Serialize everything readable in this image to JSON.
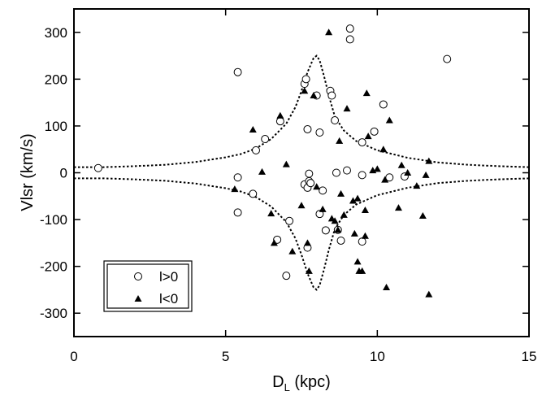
{
  "chart_data": {
    "type": "scatter",
    "xlabel_main": "D",
    "xlabel_sub": "L",
    "xlabel_unit": " (kpc)",
    "ylabel": "Vlsr  (km/s)",
    "xlim": [
      0,
      15
    ],
    "ylim": [
      -350,
      350
    ],
    "xticks": [
      0,
      5,
      10,
      15
    ],
    "xtick_labels": [
      "0",
      "5",
      "10",
      "15"
    ],
    "yticks": [
      -300,
      -200,
      -100,
      0,
      100,
      200,
      300
    ],
    "ytick_labels": [
      "-300",
      "-200",
      "-100",
      "0",
      "100",
      "200",
      "300"
    ],
    "grid": false,
    "legend_position": "bottom-left",
    "series": [
      {
        "name": "l>0",
        "marker": "open-circle",
        "points": [
          [
            0.8,
            10
          ],
          [
            5.4,
            215
          ],
          [
            5.4,
            -10
          ],
          [
            5.4,
            -85
          ],
          [
            5.9,
            -45
          ],
          [
            6.0,
            48
          ],
          [
            6.3,
            72
          ],
          [
            6.7,
            -143
          ],
          [
            6.8,
            110
          ],
          [
            7.0,
            -220
          ],
          [
            7.1,
            -103
          ],
          [
            7.6,
            190
          ],
          [
            7.6,
            -25
          ],
          [
            7.65,
            200
          ],
          [
            7.7,
            93
          ],
          [
            7.7,
            -32
          ],
          [
            7.7,
            -160
          ],
          [
            7.75,
            -2
          ],
          [
            7.75,
            -18
          ],
          [
            7.8,
            -22
          ],
          [
            8.0,
            165
          ],
          [
            8.1,
            86
          ],
          [
            8.1,
            -88
          ],
          [
            8.2,
            -38
          ],
          [
            8.3,
            -123
          ],
          [
            8.45,
            175
          ],
          [
            8.5,
            165
          ],
          [
            8.6,
            112
          ],
          [
            8.65,
            0
          ],
          [
            8.7,
            -122
          ],
          [
            8.8,
            -145
          ],
          [
            9.0,
            5
          ],
          [
            9.1,
            308
          ],
          [
            9.1,
            285
          ],
          [
            9.5,
            -5
          ],
          [
            9.5,
            65
          ],
          [
            9.5,
            -147
          ],
          [
            9.9,
            88
          ],
          [
            10.2,
            146
          ],
          [
            10.4,
            -10
          ],
          [
            10.9,
            -8
          ],
          [
            12.3,
            243
          ]
        ]
      },
      {
        "name": "l<0",
        "marker": "filled-triangle",
        "points": [
          [
            5.3,
            -35
          ],
          [
            5.9,
            92
          ],
          [
            6.2,
            2
          ],
          [
            6.5,
            -87
          ],
          [
            6.6,
            -150
          ],
          [
            6.8,
            122
          ],
          [
            7.0,
            18
          ],
          [
            7.2,
            -168
          ],
          [
            7.5,
            -70
          ],
          [
            7.6,
            175
          ],
          [
            7.7,
            -150
          ],
          [
            7.75,
            -210
          ],
          [
            7.9,
            165
          ],
          [
            8.0,
            -30
          ],
          [
            8.2,
            -78
          ],
          [
            8.4,
            300
          ],
          [
            8.5,
            -98
          ],
          [
            8.6,
            -103
          ],
          [
            8.7,
            -122
          ],
          [
            8.75,
            68
          ],
          [
            8.8,
            -45
          ],
          [
            8.9,
            -90
          ],
          [
            9.0,
            137
          ],
          [
            9.2,
            -60
          ],
          [
            9.25,
            -130
          ],
          [
            9.35,
            -55
          ],
          [
            9.35,
            -190
          ],
          [
            9.4,
            -210
          ],
          [
            9.5,
            -210
          ],
          [
            9.6,
            -135
          ],
          [
            9.6,
            -80
          ],
          [
            9.65,
            170
          ],
          [
            9.7,
            78
          ],
          [
            9.85,
            5
          ],
          [
            10.0,
            8
          ],
          [
            10.2,
            50
          ],
          [
            10.25,
            -15
          ],
          [
            10.3,
            -245
          ],
          [
            10.4,
            112
          ],
          [
            10.7,
            -75
          ],
          [
            10.8,
            16
          ],
          [
            11.0,
            0
          ],
          [
            11.3,
            -28
          ],
          [
            11.5,
            -92
          ],
          [
            11.6,
            -5
          ],
          [
            11.7,
            25
          ],
          [
            11.7,
            -260
          ]
        ]
      }
    ],
    "curves": [
      {
        "style": "dotted",
        "points": [
          [
            0,
            12
          ],
          [
            1,
            12
          ],
          [
            2,
            14
          ],
          [
            3,
            17
          ],
          [
            4,
            23
          ],
          [
            5,
            33
          ],
          [
            5.5,
            40
          ],
          [
            6,
            52
          ],
          [
            6.5,
            72
          ],
          [
            7.0,
            105
          ],
          [
            7.3,
            140
          ],
          [
            7.5,
            175
          ],
          [
            7.7,
            215
          ],
          [
            7.9,
            245
          ],
          [
            8.0,
            250
          ],
          [
            8.1,
            240
          ],
          [
            8.25,
            205
          ],
          [
            8.4,
            165
          ],
          [
            8.6,
            120
          ],
          [
            8.9,
            90
          ],
          [
            9.3,
            68
          ],
          [
            10,
            48
          ],
          [
            11,
            32
          ],
          [
            12,
            22
          ],
          [
            13,
            17
          ],
          [
            14,
            14
          ],
          [
            15,
            12
          ]
        ]
      },
      {
        "style": "dotted",
        "points": [
          [
            0,
            -12
          ],
          [
            1,
            -12
          ],
          [
            2,
            -14
          ],
          [
            3,
            -17
          ],
          [
            4,
            -23
          ],
          [
            5,
            -33
          ],
          [
            5.5,
            -40
          ],
          [
            6,
            -52
          ],
          [
            6.5,
            -72
          ],
          [
            7.0,
            -105
          ],
          [
            7.3,
            -140
          ],
          [
            7.5,
            -175
          ],
          [
            7.7,
            -215
          ],
          [
            7.9,
            -245
          ],
          [
            8.0,
            -250
          ],
          [
            8.1,
            -240
          ],
          [
            8.25,
            -205
          ],
          [
            8.4,
            -165
          ],
          [
            8.6,
            -120
          ],
          [
            8.9,
            -90
          ],
          [
            9.3,
            -68
          ],
          [
            10,
            -48
          ],
          [
            11,
            -32
          ],
          [
            12,
            -22
          ],
          [
            13,
            -17
          ],
          [
            14,
            -14
          ],
          [
            15,
            -12
          ]
        ]
      }
    ]
  }
}
